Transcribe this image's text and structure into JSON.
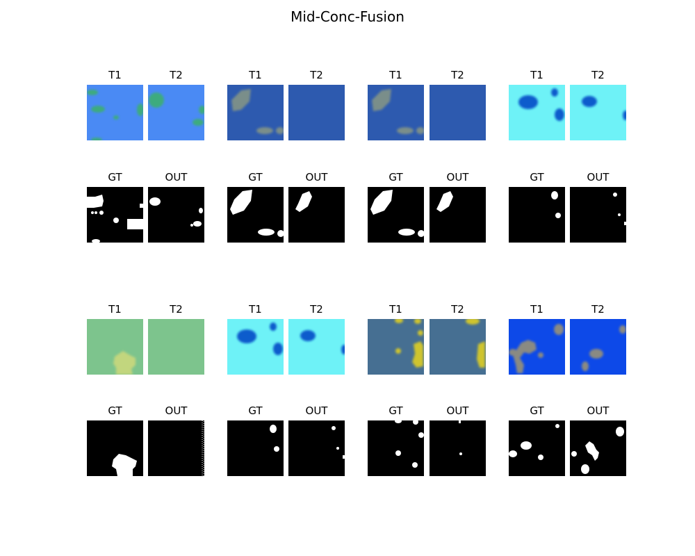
{
  "figure": {
    "title": "Mid-Conc-Fusion"
  },
  "colors": {
    "mask_bg": "#000000",
    "mask_fg": "#ffffff",
    "blue_bg": "#4a8af4",
    "blue_green_blob": "#3cab7e",
    "navy_bg": "#2d5aaf",
    "navy_gray_blob": "#7a8e8a",
    "cyan_bg": "#6ef2f7",
    "cyan_blue_blob": "#0e5bcc",
    "green_bg": "#7dc48d",
    "green_yellow_blob": "#c2d67e",
    "slate_bg": "#466f92",
    "slate_yellow_blob": "#cfc42e",
    "royal_bg": "#0d49e8",
    "royal_gray_blob": "#8a8a82"
  },
  "samples": [
    {
      "t1_label": "T1",
      "t2_label": "T2",
      "gt_label": "GT",
      "out_label": "OUT"
    },
    {
      "t1_label": "T1",
      "t2_label": "T2",
      "gt_label": "GT",
      "out_label": "OUT"
    },
    {
      "t1_label": "T1",
      "t2_label": "T2",
      "gt_label": "GT",
      "out_label": "OUT"
    },
    {
      "t1_label": "T1",
      "t2_label": "T2",
      "gt_label": "GT",
      "out_label": "OUT"
    },
    {
      "t1_label": "T1",
      "t2_label": "T2",
      "gt_label": "GT",
      "out_label": "OUT"
    },
    {
      "t1_label": "T1",
      "t2_label": "T2",
      "gt_label": "GT",
      "out_label": "OUT"
    },
    {
      "t1_label": "T1",
      "t2_label": "T2",
      "gt_label": "GT",
      "out_label": "OUT"
    },
    {
      "t1_label": "T1",
      "t2_label": "T2",
      "gt_label": "GT",
      "out_label": "OUT"
    }
  ]
}
